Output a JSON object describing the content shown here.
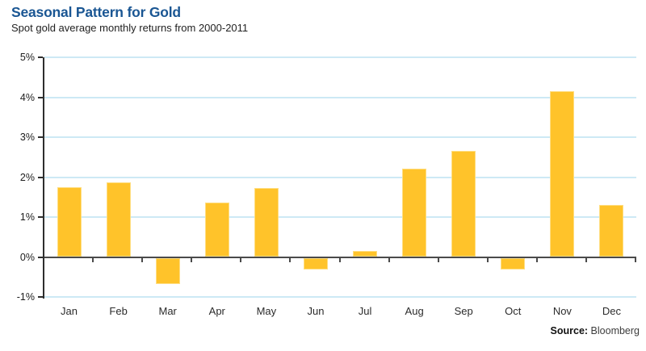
{
  "header": {
    "title": "Seasonal Pattern for Gold",
    "subtitle": "Spot gold average monthly returns from 2000-2011"
  },
  "source": {
    "label": "Source:",
    "value": "Bloomberg"
  },
  "colors": {
    "title": "#1A5693",
    "text": "#222222",
    "bar_fill": "#FFC32A",
    "bar_border": "#FFDE82",
    "gridline": "#CDE9F5",
    "zero_line": "#4A4A4A",
    "axis": "#2E2E2E"
  },
  "chart_data": {
    "type": "bar",
    "title": "Seasonal Pattern for Gold",
    "subtitle": "Spot gold average monthly returns from 2000-2011",
    "categories": [
      "Jan",
      "Feb",
      "Mar",
      "Apr",
      "May",
      "Jun",
      "Jul",
      "Aug",
      "Sep",
      "Oct",
      "Nov",
      "Dec"
    ],
    "values": [
      1.74,
      1.86,
      -0.66,
      1.37,
      1.72,
      -0.29,
      0.15,
      2.21,
      2.65,
      -0.29,
      4.16,
      1.31
    ],
    "xlabel": "",
    "ylabel": "",
    "ylim": [
      -1,
      5
    ],
    "yticks": [
      5,
      4,
      3,
      2,
      1,
      0,
      -1
    ],
    "ytick_labels": [
      "5%",
      "4%",
      "3%",
      "2%",
      "1%",
      "0%",
      "-1%"
    ],
    "grid": true,
    "legend": "none",
    "source": "Bloomberg"
  }
}
